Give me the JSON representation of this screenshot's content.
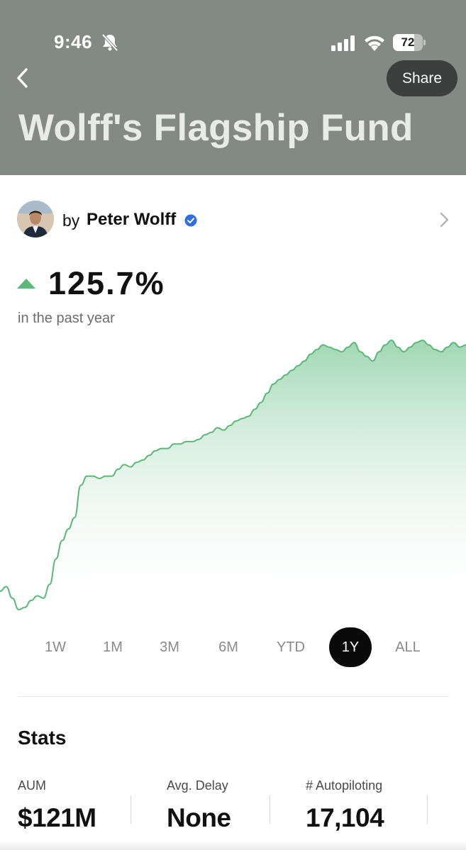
{
  "status_bar": {
    "time": "9:46",
    "battery": "72",
    "battery_level": 0.72
  },
  "header": {
    "share_label": "Share",
    "title": "Wolff's Flagship Fund"
  },
  "creator": {
    "prefix": "by",
    "name": "Peter Wolff"
  },
  "performance": {
    "return": "125.7%",
    "period": "in the past year",
    "direction": "up",
    "color": "#5cb878"
  },
  "chart_data": {
    "type": "area",
    "color": "#5cb878",
    "axes_visible": false,
    "values": [
      6,
      8,
      3,
      -2,
      -1,
      2,
      4,
      3,
      9,
      20,
      28,
      33,
      38,
      52,
      56,
      56,
      55,
      56,
      56,
      59,
      61,
      60,
      62,
      63,
      65,
      67,
      68,
      68,
      70,
      70,
      71,
      71,
      72,
      74,
      75,
      77,
      76,
      78,
      80,
      81,
      82,
      85,
      88,
      92,
      96,
      98,
      100,
      102,
      104,
      106,
      109,
      111,
      113,
      112,
      111,
      110,
      112,
      114,
      110,
      108,
      106,
      110,
      113,
      115,
      112,
      110,
      112,
      114,
      115,
      113,
      111,
      110,
      112,
      114,
      112,
      113
    ]
  },
  "ranges": {
    "items": [
      "1W",
      "1M",
      "3M",
      "6M",
      "YTD",
      "1Y",
      "ALL"
    ],
    "active": "1Y"
  },
  "stats": {
    "title": "Stats",
    "items": [
      {
        "label": "AUM",
        "value": "$121M"
      },
      {
        "label": "Avg. Delay",
        "value": "None"
      },
      {
        "label": "# Autopiloting",
        "value": "17,104"
      }
    ]
  }
}
